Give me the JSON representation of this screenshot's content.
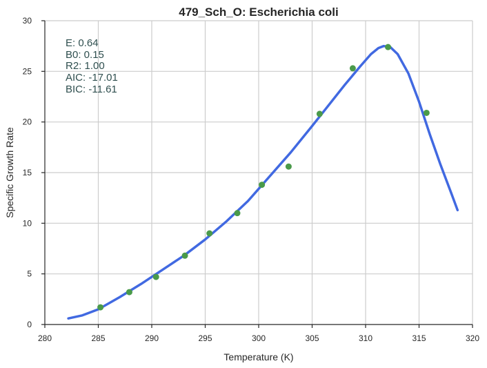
{
  "chart_data": {
    "type": "scatter",
    "title": "479_Sch_O: Escherichia coli",
    "xlabel": "Temperature (K)",
    "ylabel": "Specific Growth Rate",
    "xlim": [
      280,
      320
    ],
    "ylim": [
      0,
      30
    ],
    "xticks": [
      "280",
      "285",
      "290",
      "295",
      "300",
      "305",
      "310",
      "315",
      "320"
    ],
    "yticks": [
      "0",
      "5",
      "10",
      "15",
      "20",
      "25",
      "30"
    ],
    "grid": true,
    "series": [
      {
        "kind": "points",
        "color": "#4a9a4a",
        "x": [
          285.2,
          287.9,
          290.4,
          293.1,
          295.4,
          298.0,
          300.3,
          302.8,
          305.7,
          308.8,
          312.1,
          315.7
        ],
        "y": [
          1.7,
          3.2,
          4.7,
          6.8,
          9.0,
          11.0,
          13.8,
          15.6,
          20.8,
          25.3,
          27.4,
          20.9
        ]
      },
      {
        "kind": "curve",
        "color": "#4169e1",
        "x": [
          282.2,
          283.5,
          285.0,
          287.0,
          289.0,
          291.0,
          293.0,
          295.0,
          297.0,
          299.0,
          301.0,
          303.0,
          305.0,
          306.5,
          308.0,
          309.5,
          310.5,
          311.2,
          311.7,
          312.3,
          313.0,
          314.0,
          315.0,
          316.0,
          317.0,
          318.0,
          318.6
        ],
        "y": [
          0.6,
          0.9,
          1.5,
          2.7,
          4.0,
          5.4,
          6.8,
          8.4,
          10.2,
          12.2,
          14.6,
          17.0,
          19.6,
          21.6,
          23.6,
          25.5,
          26.7,
          27.3,
          27.5,
          27.4,
          26.7,
          24.8,
          22.0,
          18.8,
          15.8,
          13.0,
          11.3
        ]
      }
    ],
    "annotations": [
      "E:  0.64",
      "B0:  0.15",
      "R2:  1.00",
      "AIC: -17.01",
      "BIC: -11.61"
    ]
  }
}
